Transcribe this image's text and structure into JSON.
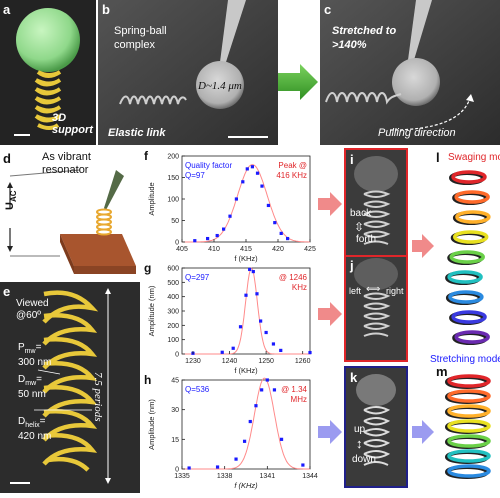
{
  "panels": {
    "a": {
      "letter": "a",
      "label": "3D support"
    },
    "b": {
      "letter": "b",
      "title": "Spring-ball complex",
      "diameter": "D~1.4 μm",
      "elastic": "Elastic link"
    },
    "c": {
      "letter": "c",
      "title": "Stretched to >140%",
      "pulling": "Pulling direction"
    },
    "d": {
      "letter": "d",
      "resonator": "As vibrant resonator",
      "voltage": "U",
      "voltage_sub": "AC"
    },
    "e": {
      "letter": "e",
      "viewed": "Viewed @60º",
      "pmw_label": "P",
      "pmw_sub": "mw",
      "pmw_eq": "=",
      "pmw_value": "300 nm",
      "dmw_label": "D",
      "dmw_sub": "mw",
      "dmw_eq": "=",
      "dmw_value": "50 nm",
      "dhelix_label": "D",
      "dhelix_sub": "helix",
      "dhelix_eq": "=",
      "dhelix_value": "420 nm",
      "periods": "7.5 periods"
    },
    "i": {
      "letter": "i",
      "back": "back",
      "forth": "forth"
    },
    "j": {
      "letter": "j",
      "left": "left",
      "right": "right"
    },
    "k": {
      "letter": "k",
      "up": "up",
      "down": "down"
    },
    "l": {
      "letter": "l",
      "mode": "Swaging mode"
    },
    "m": {
      "letter": "m",
      "mode": "Stretching mode"
    }
  },
  "colors": {
    "red_frame": "#e0262a",
    "blue_frame": "#20208a",
    "blue_text": "#1a1aff",
    "red_text": "#e0262a",
    "green_arrow": "#3aa82a",
    "pink_arrow": "#f08a8a",
    "lavender_arrow": "#9b9bf0",
    "gold": "#e8c83a"
  },
  "chart_data": [
    {
      "letter": "f",
      "type": "scatter",
      "quality_factor_label": "Quality factor",
      "q_label": "Q=97",
      "peak_label": "Peak @",
      "peak_value": "416 KHz",
      "xlabel": "f (KHz)",
      "ylabel": "Amplitude",
      "xlim": [
        405,
        425
      ],
      "ylim": [
        0,
        200
      ],
      "xticks": [
        "405",
        "410",
        "415",
        "420",
        "425"
      ],
      "yticks": [
        "0",
        "50",
        "100",
        "150",
        "200"
      ],
      "x": [
        407,
        409,
        410.5,
        411.5,
        412.5,
        413.5,
        414.5,
        415.2,
        416,
        416.8,
        417.5,
        418.5,
        419.5,
        420.5,
        421.5
      ],
      "y": [
        3,
        8,
        15,
        30,
        60,
        100,
        140,
        170,
        175,
        160,
        130,
        85,
        45,
        20,
        8
      ],
      "fit": {
        "center": 416,
        "amplitude": 180,
        "sigma": 2.3
      }
    },
    {
      "letter": "g",
      "type": "scatter",
      "q_label": "Q=297",
      "peak_value": "@ 1246",
      "peak_unit": "KHz",
      "xlabel": "f (KHz)",
      "ylabel": "Amplitude (nm)",
      "xlim": [
        1227,
        1262
      ],
      "ylim": [
        0,
        600
      ],
      "xticks": [
        "1230",
        "1240",
        "1250",
        "1260"
      ],
      "yticks": [
        "0",
        "100",
        "200",
        "300",
        "400",
        "500",
        "600"
      ],
      "x": [
        1230,
        1238,
        1241,
        1243,
        1244.5,
        1245.5,
        1246.5,
        1247.5,
        1248.5,
        1250,
        1252,
        1254,
        1262
      ],
      "y": [
        5,
        12,
        40,
        190,
        410,
        590,
        575,
        420,
        230,
        150,
        70,
        25,
        10
      ],
      "fit": {
        "center": 1246,
        "amplitude": 600,
        "sigma": 1.6
      }
    },
    {
      "letter": "h",
      "type": "scatter",
      "q_label": "Q=536",
      "peak_value": "@ 1.34",
      "peak_unit": "MHz",
      "xlabel": "f (KHz)",
      "ylabel": "Amplitude (nm)",
      "xlim": [
        1335,
        1344
      ],
      "ylim": [
        0,
        45
      ],
      "xticks": [
        "1335",
        "1338",
        "1341",
        "1344"
      ],
      "yticks": [
        "0",
        "15",
        "30",
        "45"
      ],
      "x": [
        1335.5,
        1337.5,
        1338.8,
        1339.4,
        1339.8,
        1340.2,
        1340.6,
        1341,
        1341.5,
        1342,
        1343.5
      ],
      "y": [
        0.5,
        1,
        5,
        14,
        24,
        32,
        40,
        45,
        40,
        15,
        2
      ],
      "fit": {
        "center": 1340.8,
        "amplitude": 46,
        "sigma": 0.7
      }
    }
  ]
}
